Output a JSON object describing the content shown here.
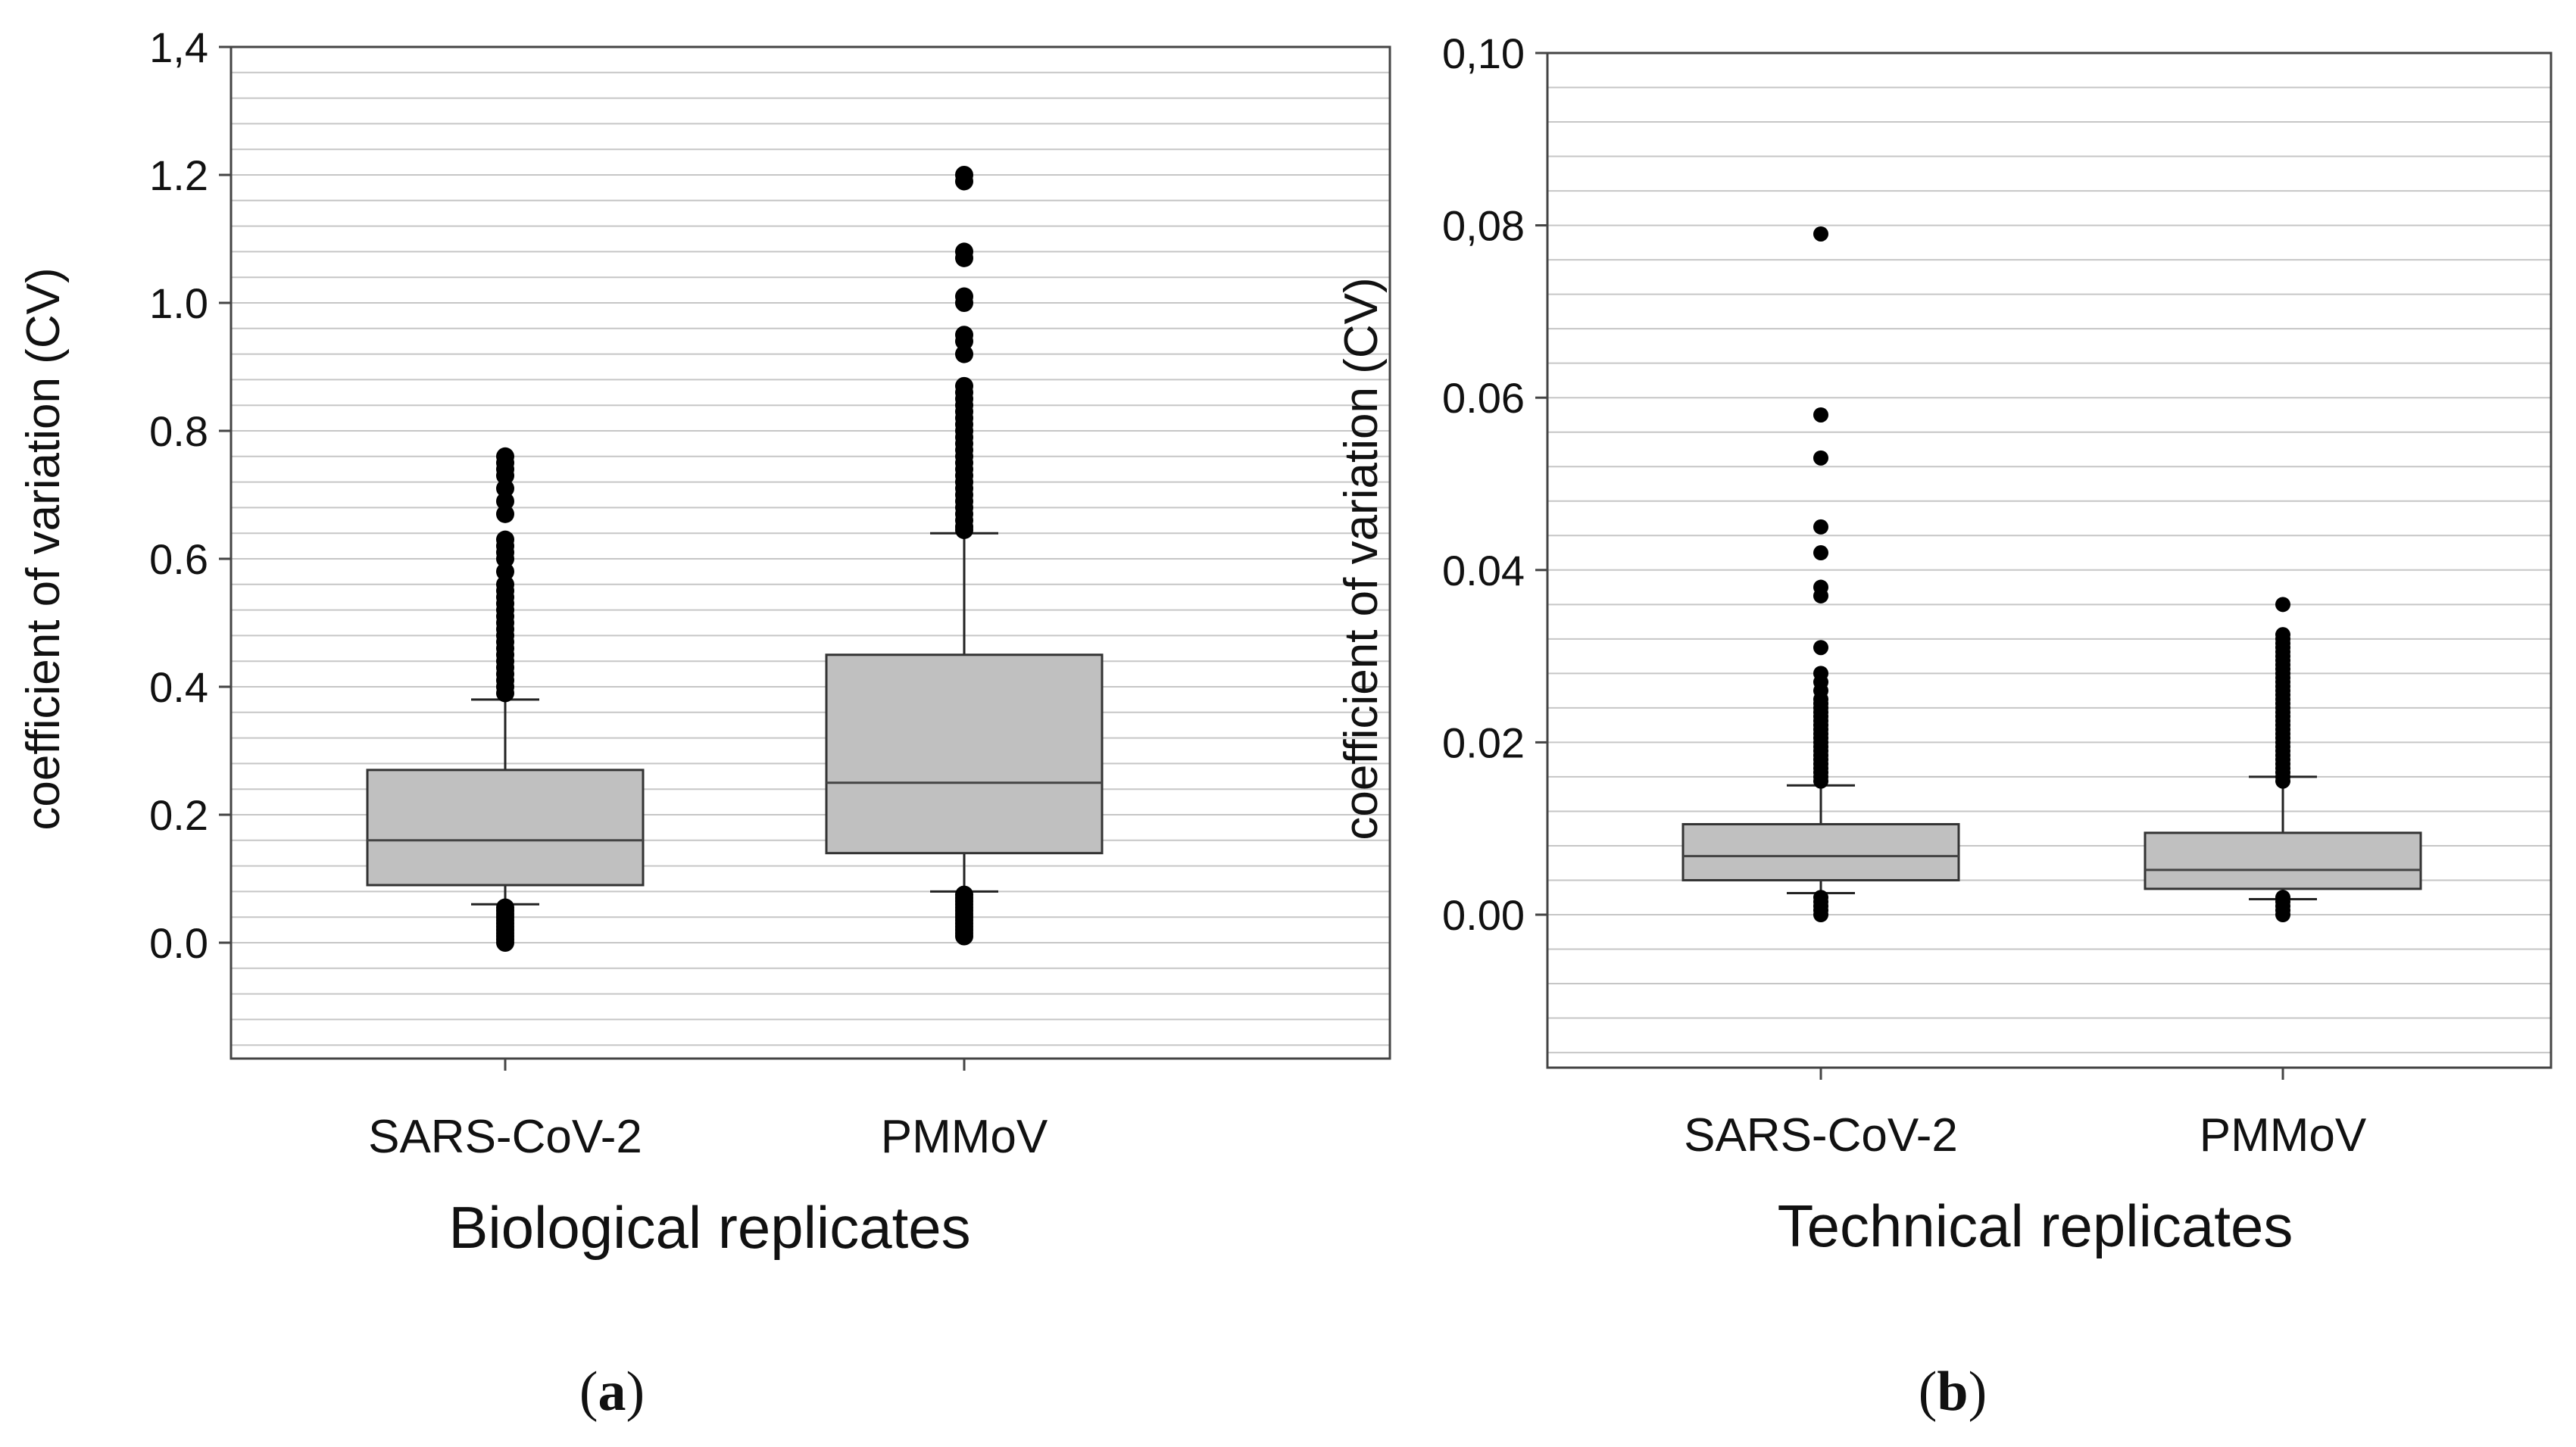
{
  "chart_data": [
    {
      "type": "box",
      "panel": "a",
      "panel_label": "a",
      "xlabel": "Biological replicates",
      "ylabel": "coefficient of variation (CV)",
      "ylim": [
        -0.18,
        1.4
      ],
      "yticks": [
        0.0,
        0.2,
        0.4,
        0.6,
        0.8,
        1.0,
        1.2,
        1.4
      ],
      "ytick_labels": [
        "0.0",
        "0.2",
        "0.4",
        "0.6",
        "0.8",
        "1.0",
        "1.2",
        "1,4"
      ],
      "grid": true,
      "categories": [
        "SARS-CoV-2",
        "PMMoV"
      ],
      "boxes": [
        {
          "name": "SARS-CoV-2",
          "whisker_low": 0.06,
          "q1": 0.09,
          "median": 0.16,
          "q3": 0.27,
          "whisker_high": 0.38,
          "outliers_high": [
            0.39,
            0.4,
            0.41,
            0.42,
            0.43,
            0.44,
            0.45,
            0.46,
            0.47,
            0.48,
            0.49,
            0.5,
            0.51,
            0.52,
            0.53,
            0.54,
            0.55,
            0.56,
            0.58,
            0.6,
            0.61,
            0.62,
            0.63,
            0.67,
            0.69,
            0.71,
            0.73,
            0.74,
            0.75,
            0.76
          ],
          "outliers_low": [
            0.0,
            0.005,
            0.01,
            0.015,
            0.02,
            0.025,
            0.03,
            0.035,
            0.04,
            0.045,
            0.05,
            0.055
          ]
        },
        {
          "name": "PMMoV",
          "whisker_low": 0.08,
          "q1": 0.14,
          "median": 0.25,
          "q3": 0.45,
          "whisker_high": 0.64,
          "outliers_high": [
            0.645,
            0.65,
            0.66,
            0.67,
            0.68,
            0.69,
            0.7,
            0.71,
            0.72,
            0.73,
            0.74,
            0.75,
            0.76,
            0.77,
            0.78,
            0.79,
            0.8,
            0.81,
            0.82,
            0.83,
            0.84,
            0.85,
            0.86,
            0.87,
            0.92,
            0.94,
            0.95,
            1.0,
            1.01,
            1.07,
            1.08,
            1.19,
            1.2
          ],
          "outliers_low": [
            0.01,
            0.015,
            0.02,
            0.025,
            0.03,
            0.035,
            0.04,
            0.045,
            0.05,
            0.055,
            0.06,
            0.065,
            0.07,
            0.075
          ]
        }
      ]
    },
    {
      "type": "box",
      "panel": "b",
      "panel_label": "b",
      "xlabel": "Technical replicates",
      "ylabel": "coefficient of variation (CV)",
      "ylim": [
        -0.018,
        0.1
      ],
      "yticks": [
        0.0,
        0.02,
        0.04,
        0.06,
        0.08,
        0.1
      ],
      "ytick_labels": [
        "0.00",
        "0.02",
        "0.04",
        "0.06",
        "0,08",
        "0,10"
      ],
      "grid": true,
      "categories": [
        "SARS-CoV-2",
        "PMMoV"
      ],
      "boxes": [
        {
          "name": "SARS-CoV-2",
          "whisker_low": 0.0025,
          "q1": 0.004,
          "median": 0.0068,
          "q3": 0.0105,
          "whisker_high": 0.015,
          "outliers_high": [
            0.0155,
            0.016,
            0.0165,
            0.017,
            0.0175,
            0.018,
            0.0185,
            0.019,
            0.0195,
            0.02,
            0.0205,
            0.021,
            0.0215,
            0.022,
            0.0225,
            0.023,
            0.0235,
            0.024,
            0.0245,
            0.025,
            0.026,
            0.027,
            0.028,
            0.031,
            0.037,
            0.038,
            0.042,
            0.045,
            0.053,
            0.058,
            0.079
          ],
          "outliers_low": [
            0.0,
            0.0005,
            0.001,
            0.0015,
            0.002
          ]
        },
        {
          "name": "PMMoV",
          "whisker_low": 0.0018,
          "q1": 0.003,
          "median": 0.0052,
          "q3": 0.0095,
          "whisker_high": 0.016,
          "outliers_high": [
            0.0155,
            0.016,
            0.0165,
            0.017,
            0.0175,
            0.018,
            0.0185,
            0.019,
            0.0195,
            0.02,
            0.0205,
            0.021,
            0.0215,
            0.022,
            0.0225,
            0.023,
            0.0235,
            0.024,
            0.0245,
            0.025,
            0.0255,
            0.026,
            0.0265,
            0.027,
            0.0275,
            0.028,
            0.0285,
            0.029,
            0.0295,
            0.03,
            0.0305,
            0.031,
            0.0315,
            0.032,
            0.0325,
            0.036
          ],
          "outliers_low": [
            0.0,
            0.0005,
            0.001,
            0.0015,
            0.002
          ]
        }
      ]
    }
  ]
}
